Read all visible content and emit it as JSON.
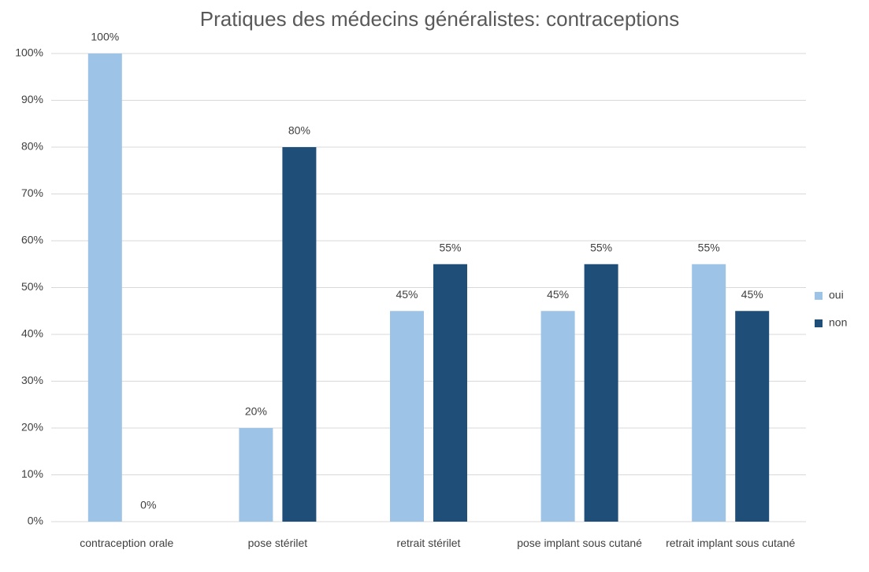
{
  "chart_data": {
    "type": "bar",
    "title": "Pratiques des médecins généralistes: contraceptions",
    "categories": [
      "contraception orale",
      "pose stérilet",
      "retrait stérilet",
      "pose implant sous cutané",
      "retrait implant sous cutané"
    ],
    "series": [
      {
        "name": "oui",
        "color": "#9dc3e6",
        "values": [
          100,
          20,
          45,
          45,
          55
        ],
        "value_labels": [
          "100%",
          "20%",
          "45%",
          "45%",
          "55%"
        ]
      },
      {
        "name": "non",
        "color": "#1f4e79",
        "values": [
          0,
          80,
          55,
          55,
          45
        ],
        "value_labels": [
          "0%",
          "80%",
          "55%",
          "55%",
          "45%"
        ]
      }
    ],
    "ylim": [
      0,
      100
    ],
    "yticks": [
      {
        "value": 0,
        "label": "0%"
      },
      {
        "value": 10,
        "label": "10%"
      },
      {
        "value": 20,
        "label": "20%"
      },
      {
        "value": 30,
        "label": "30%"
      },
      {
        "value": 40,
        "label": "40%"
      },
      {
        "value": 50,
        "label": "50%"
      },
      {
        "value": 60,
        "label": "60%"
      },
      {
        "value": 70,
        "label": "70%"
      },
      {
        "value": 80,
        "label": "80%"
      },
      {
        "value": 90,
        "label": "90%"
      },
      {
        "value": 100,
        "label": "100%"
      }
    ],
    "grid": true,
    "legend": "right"
  }
}
